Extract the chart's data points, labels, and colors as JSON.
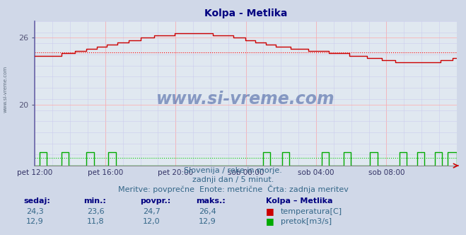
{
  "title": "Kolpa - Metlika",
  "title_color": "#000080",
  "bg_color": "#d0d8e8",
  "plot_bg_color": "#e0e8f0",
  "grid_color_major": "#ffaaaa",
  "grid_color_minor": "#ccccee",
  "x_labels": [
    "pet 12:00",
    "pet 16:00",
    "pet 20:00",
    "sob 00:00",
    "sob 04:00",
    "sob 08:00"
  ],
  "y_ticks": [
    20,
    26
  ],
  "y_min": 14.5,
  "y_max": 27.5,
  "temp_avg": 24.7,
  "flow_avg": 12.0,
  "temp_color": "#cc0000",
  "flow_color": "#00aa00",
  "avg_line_color": "#ff0000",
  "flow_avg_color": "#00cc00",
  "subtitle1": "Slovenija / reke in morje.",
  "subtitle2": "zadnji dan / 5 minut.",
  "subtitle3": "Meritve: povprečne  Enote: metrične  Črta: zadnja meritev",
  "col_headers": [
    "sedaj:",
    "min.:",
    "povpr.:",
    "maks.:",
    "Kolpa – Metlika"
  ],
  "row1_vals": [
    "24,3",
    "23,6",
    "24,7",
    "26,4"
  ],
  "row1_label": "temperatura[C]",
  "row2_vals": [
    "12,9",
    "11,8",
    "12,0",
    "12,9"
  ],
  "row2_label": "pretok[m3/s]",
  "watermark": "www.si-vreme.com",
  "watermark_color": "#1a3a8c",
  "sidebar_text": "www.si-vreme.com"
}
